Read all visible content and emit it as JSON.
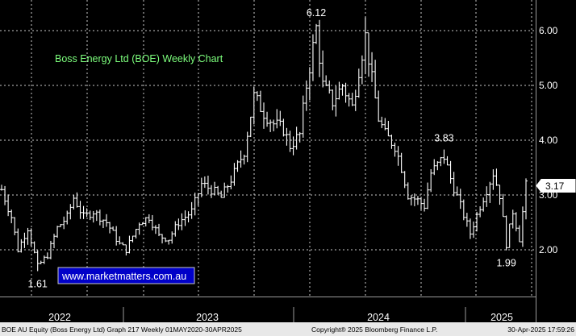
{
  "chart_data": {
    "type": "ohlc",
    "title": "Boss Energy Ltd (BOE) Weekly Chart",
    "watermark": "www.marketmatters.com.au",
    "x_labels": [
      "2022",
      "2023",
      "2024",
      "2025"
    ],
    "y_ticks": [
      "2.00",
      "3.00",
      "4.00",
      "5.00",
      "6.00"
    ],
    "ylim": [
      1.2,
      6.5
    ],
    "grid": true,
    "last_price_label": "3.17",
    "annotations": [
      {
        "text": "6.12",
        "week": 96,
        "value": 6.12,
        "placement": "above"
      },
      {
        "text": "3.83",
        "week": 135,
        "value": 3.83,
        "placement": "above"
      },
      {
        "text": "1.61",
        "week": 11,
        "value": 1.61,
        "placement": "below"
      },
      {
        "text": "1.99",
        "week": 154,
        "value": 1.99,
        "placement": "below"
      }
    ],
    "anchors": [
      [
        0,
        3.1
      ],
      [
        3,
        2.6
      ],
      [
        5,
        2.0
      ],
      [
        8,
        2.4
      ],
      [
        11,
        1.7
      ],
      [
        14,
        1.9
      ],
      [
        17,
        2.4
      ],
      [
        20,
        2.6
      ],
      [
        22,
        2.95
      ],
      [
        25,
        2.6
      ],
      [
        28,
        2.7
      ],
      [
        32,
        2.5
      ],
      [
        36,
        2.1
      ],
      [
        38,
        2.0
      ],
      [
        42,
        2.5
      ],
      [
        45,
        2.6
      ],
      [
        48,
        2.25
      ],
      [
        51,
        2.2
      ],
      [
        54,
        2.5
      ],
      [
        58,
        2.7
      ],
      [
        61,
        3.2
      ],
      [
        64,
        3.1
      ],
      [
        67,
        2.95
      ],
      [
        71,
        3.4
      ],
      [
        74,
        3.8
      ],
      [
        77,
        4.8
      ],
      [
        80,
        4.5
      ],
      [
        83,
        4.3
      ],
      [
        86,
        4.2
      ],
      [
        88,
        3.9
      ],
      [
        91,
        4.1
      ],
      [
        93,
        5.0
      ],
      [
        95,
        5.7
      ],
      [
        96,
        6.05
      ],
      [
        98,
        5.0
      ],
      [
        101,
        4.7
      ],
      [
        104,
        5.0
      ],
      [
        107,
        4.6
      ],
      [
        109,
        5.3
      ],
      [
        111,
        5.9
      ],
      [
        113,
        5.1
      ],
      [
        115,
        4.4
      ],
      [
        117,
        4.1
      ],
      [
        120,
        3.9
      ],
      [
        122,
        3.5
      ],
      [
        124,
        3.0
      ],
      [
        127,
        2.9
      ],
      [
        129,
        2.8
      ],
      [
        131,
        3.4
      ],
      [
        135,
        3.7
      ],
      [
        137,
        3.3
      ],
      [
        140,
        2.8
      ],
      [
        143,
        2.3
      ],
      [
        146,
        2.8
      ],
      [
        150,
        3.4
      ],
      [
        152,
        3.0
      ],
      [
        154,
        2.1
      ],
      [
        156,
        2.7
      ],
      [
        158,
        2.2
      ],
      [
        160,
        3.17
      ]
    ]
  },
  "footer": {
    "left": "BOE AU Equity (Boss Energy Ltd) Graph 217  Weekly 01MAY2020-30APR2025",
    "center": "Copyright® 2025 Bloomberg Finance L.P.",
    "right": "30-Apr-2025 17:59:26"
  }
}
